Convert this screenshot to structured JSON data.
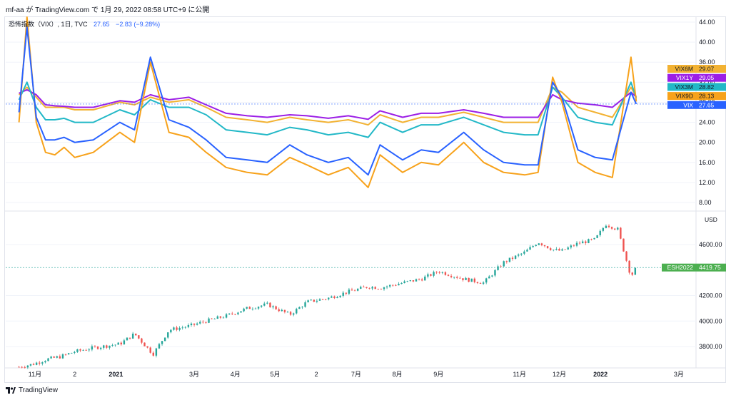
{
  "header": {
    "text": "mf-aa が TradingView.com で 1月 29, 2022 08:58 UTC+9 に公開"
  },
  "legend": {
    "title": "恐怖指数（VIX）, 1日, TVC",
    "last": "27.65",
    "change": "−2.83 (−9.28%)"
  },
  "footer": {
    "brand": "TradingView"
  },
  "colors": {
    "VIX": "#2962ff",
    "VIX9D": "#f7a21b",
    "VIX3M": "#22b8c7",
    "VIX6M": "#f2b233",
    "VIX1Y": "#9c1fe6",
    "ES": "#26a69a",
    "ES_down": "#ef5350",
    "grid": "#f0f3fa",
    "axis_text": "#131722"
  },
  "chart_data": [
    {
      "type": "line",
      "panel": "volatility indices",
      "y_ticks": [
        "44.00",
        "40.00",
        "36.00",
        "32.00",
        "28.00",
        "24.00",
        "20.00",
        "16.00",
        "12.00",
        "8.00"
      ],
      "ylim": [
        6,
        46
      ],
      "x": [
        "2020-10-20",
        "2020-10-26",
        "2020-11-02",
        "2020-11-09",
        "2020-11-16",
        "2020-11-23",
        "2020-12-01",
        "2020-12-15",
        "2021-01-04",
        "2021-01-15",
        "2021-01-27",
        "2021-02-10",
        "2021-02-25",
        "2021-03-10",
        "2021-03-25",
        "2021-04-10",
        "2021-04-25",
        "2021-05-12",
        "2021-05-25",
        "2021-06-10",
        "2021-06-25",
        "2021-07-10",
        "2021-07-19",
        "2021-08-05",
        "2021-08-19",
        "2021-09-01",
        "2021-09-20",
        "2021-10-05",
        "2021-10-20",
        "2021-11-05",
        "2021-11-15",
        "2021-11-26",
        "2021-12-03",
        "2021-12-15",
        "2021-12-28",
        "2022-01-10",
        "2022-01-24",
        "2022-01-28"
      ],
      "series": [
        {
          "name": "VIX6M",
          "last": "29.07",
          "values": [
            29.5,
            31,
            29,
            27,
            27,
            27,
            26.5,
            26.5,
            28,
            27.5,
            29,
            28,
            28.5,
            27,
            25,
            24.5,
            24,
            25,
            24.5,
            24,
            24.5,
            23.5,
            25.5,
            24,
            25,
            25,
            26,
            25,
            24,
            24,
            24,
            31,
            30,
            27,
            26,
            25,
            31,
            29.07
          ]
        },
        {
          "name": "VIX1Y",
          "last": "29.05",
          "values": [
            29.8,
            30.5,
            29.5,
            27.5,
            27.3,
            27.2,
            27,
            27,
            28.3,
            28,
            29.5,
            28.5,
            29,
            27.5,
            25.8,
            25.3,
            25,
            25.5,
            25.3,
            24.8,
            25.3,
            24.6,
            26.3,
            25,
            25.8,
            25.8,
            26.5,
            25.8,
            25,
            25,
            25,
            29.5,
            28.5,
            27.8,
            27.5,
            27,
            30,
            29.05
          ]
        },
        {
          "name": "VIX3M",
          "last": "28.82",
          "values": [
            28.5,
            32,
            27,
            24.5,
            24.5,
            24.8,
            24,
            24,
            26.5,
            25.5,
            28.5,
            27,
            27,
            25.5,
            22.5,
            22,
            21.5,
            23,
            22.5,
            21.5,
            22,
            21,
            24,
            22,
            23.5,
            23.5,
            25,
            23.5,
            22,
            21.5,
            21.5,
            31,
            29,
            25,
            24,
            23.5,
            32,
            28.82
          ]
        },
        {
          "name": "VIX9D",
          "last": "28.13",
          "values": [
            24,
            45,
            24,
            18,
            17.5,
            19,
            17,
            18,
            22,
            20,
            36,
            22,
            21,
            18,
            15,
            14,
            13.5,
            17,
            15.5,
            13.5,
            15,
            11,
            17.5,
            14,
            16,
            15.5,
            20,
            16,
            14,
            13.5,
            14,
            33,
            28,
            16,
            14,
            13,
            37,
            28.13
          ]
        },
        {
          "name": "VIX",
          "last": "27.65",
          "values": [
            26,
            43,
            25,
            20.5,
            20.5,
            21,
            20,
            20.5,
            24,
            22.5,
            37,
            24.5,
            23,
            20.5,
            17,
            16.5,
            16,
            19.5,
            17.5,
            16,
            17,
            13.5,
            19.5,
            16.5,
            18.5,
            18,
            22,
            18.5,
            16,
            15.5,
            15.5,
            32,
            29,
            18.5,
            17,
            16.5,
            30,
            27.65
          ]
        }
      ]
    },
    {
      "type": "candlestick",
      "panel": "ESH2022",
      "series_label": "ESH2022",
      "last": "4419.75",
      "unit": "USD",
      "y_ticks": [
        "4600.00",
        "4200.00",
        "4000.00",
        "3800.00"
      ],
      "ylim": [
        3630,
        4840
      ],
      "x": [
        "2020-10-20",
        "2020-10-30",
        "2020-11-10",
        "2020-11-20",
        "2020-12-01",
        "2020-12-15",
        "2021-01-04",
        "2021-01-15",
        "2021-01-29",
        "2021-02-10",
        "2021-02-25",
        "2021-03-10",
        "2021-03-25",
        "2021-04-10",
        "2021-04-25",
        "2021-05-12",
        "2021-05-25",
        "2021-06-10",
        "2021-06-25",
        "2021-07-10",
        "2021-07-19",
        "2021-08-05",
        "2021-08-19",
        "2021-09-01",
        "2021-09-20",
        "2021-10-05",
        "2021-10-20",
        "2021-11-05",
        "2021-11-15",
        "2021-11-26",
        "2021-12-03",
        "2021-12-15",
        "2021-12-28",
        "2022-01-05",
        "2022-01-14",
        "2022-01-24",
        "2022-01-28"
      ],
      "close": [
        3640,
        3660,
        3700,
        3720,
        3760,
        3790,
        3820,
        3900,
        3740,
        3930,
        3960,
        4000,
        4040,
        4100,
        4130,
        4050,
        4150,
        4180,
        4230,
        4270,
        4260,
        4300,
        4330,
        4390,
        4330,
        4300,
        4460,
        4540,
        4620,
        4560,
        4550,
        4610,
        4640,
        4760,
        4720,
        4350,
        4420
      ]
    }
  ],
  "x_axis_labels": [
    "11月",
    "2",
    "2021",
    "3月",
    "4月",
    "5月",
    "2",
    "7月",
    "8月",
    "9月",
    "11月",
    "12月",
    "2022",
    "3月"
  ]
}
